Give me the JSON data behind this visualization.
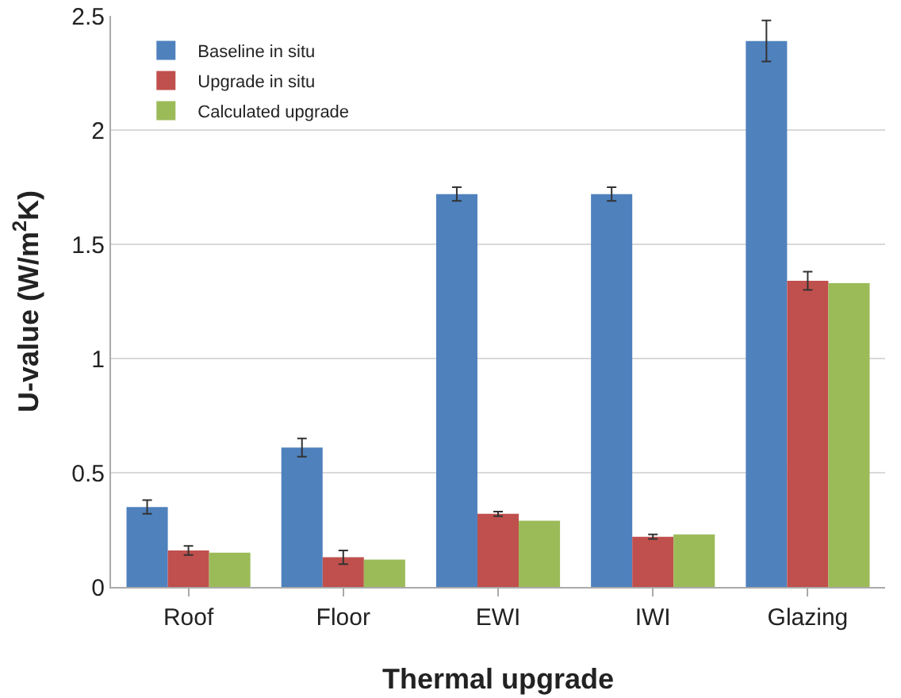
{
  "chart_data": {
    "type": "bar",
    "xlabel": "Thermal upgrade",
    "ylabel": "U-value (W/m$^{2}$K)",
    "categories": [
      "Roof",
      "Floor",
      "EWI",
      "IWI",
      "Glazing"
    ],
    "series": [
      {
        "name": "Baseline in situ",
        "color": "#4f81bd",
        "values": [
          0.35,
          0.61,
          1.72,
          1.72,
          2.39
        ],
        "errors": [
          0.03,
          0.04,
          0.03,
          0.03,
          0.09
        ]
      },
      {
        "name": "Upgrade in situ",
        "color": "#c0504d",
        "values": [
          0.16,
          0.13,
          0.32,
          0.22,
          1.34
        ],
        "errors": [
          0.02,
          0.03,
          0.01,
          0.01,
          0.04
        ]
      },
      {
        "name": "Calculated upgrade",
        "color": "#9bbb59",
        "values": [
          0.15,
          0.12,
          0.29,
          0.23,
          1.33
        ]
      }
    ],
    "ylim": [
      0,
      2.5
    ],
    "yticks": [
      0,
      0.5,
      1,
      1.5,
      2,
      2.5
    ],
    "grid": "y",
    "legend": "top left"
  }
}
